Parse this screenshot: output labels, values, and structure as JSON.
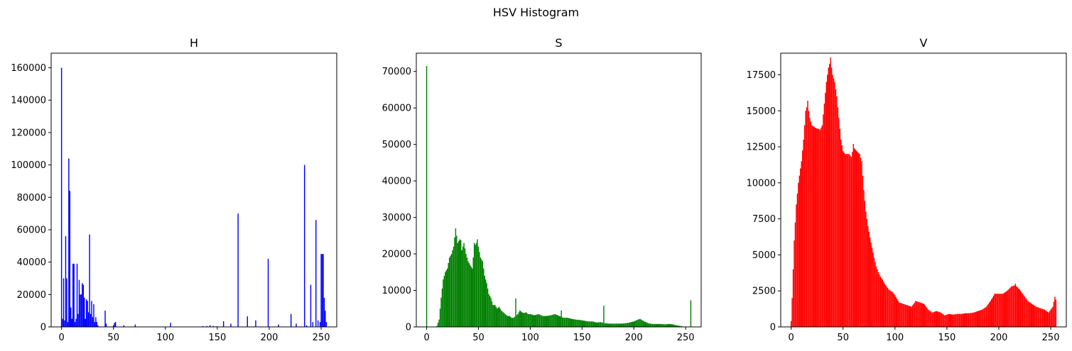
{
  "figure": {
    "title": "HSV Histogram"
  },
  "chart_data": [
    {
      "type": "bar",
      "title": "H",
      "color": "#0000ff",
      "xlim": [
        -10,
        265
      ],
      "ylim": [
        0,
        169000
      ],
      "xticks": [
        0,
        50,
        100,
        150,
        200,
        250
      ],
      "yticks": [
        0,
        20000,
        40000,
        60000,
        80000,
        100000,
        120000,
        140000,
        160000
      ],
      "x": [
        0,
        1,
        2,
        3,
        4,
        5,
        6,
        7,
        8,
        9,
        10,
        11,
        12,
        13,
        14,
        15,
        16,
        17,
        18,
        19,
        20,
        21,
        22,
        23,
        24,
        25,
        26,
        27,
        28,
        29,
        30,
        31,
        32,
        33,
        34,
        35,
        42,
        43,
        50,
        51,
        52,
        60,
        71,
        105,
        136,
        140,
        143,
        146,
        149,
        156,
        163,
        170,
        179,
        187,
        199,
        209,
        221,
        226,
        234,
        236,
        240,
        242,
        245,
        247,
        249,
        250,
        251,
        252,
        253,
        254,
        255
      ],
      "values": [
        160000,
        5000,
        30000,
        4000,
        56000,
        30000,
        3000,
        104000,
        84000,
        12000,
        5000,
        39000,
        39000,
        3000,
        5000,
        39000,
        8000,
        29000,
        20000,
        20000,
        27000,
        26000,
        18000,
        5000,
        17000,
        16000,
        9000,
        57000,
        8000,
        16000,
        6000,
        14000,
        3000,
        6000,
        3000,
        1000,
        10000,
        2000,
        1000,
        2500,
        3000,
        1000,
        1500,
        2500,
        500,
        500,
        1000,
        600,
        400,
        3500,
        2000,
        70000,
        6500,
        4000,
        42000,
        1500,
        8000,
        2000,
        100000,
        1000,
        26000,
        3000,
        66000,
        4000,
        3000,
        45000,
        45000,
        45000,
        18000,
        10000,
        3000
      ]
    },
    {
      "type": "bar",
      "title": "S",
      "color": "#008000",
      "xlim": [
        -10,
        265
      ],
      "ylim": [
        0,
        75000
      ],
      "xticks": [
        0,
        50,
        100,
        150,
        200,
        250
      ],
      "yticks": [
        0,
        10000,
        20000,
        30000,
        40000,
        50000,
        60000,
        70000
      ],
      "anchors": [
        [
          0,
          71500
        ],
        [
          1,
          0
        ],
        [
          9,
          0
        ],
        [
          10,
          300
        ],
        [
          12,
          2000
        ],
        [
          14,
          8000
        ],
        [
          16,
          13000
        ],
        [
          18,
          15000
        ],
        [
          20,
          16000
        ],
        [
          22,
          19000
        ],
        [
          24,
          20000
        ],
        [
          26,
          22000
        ],
        [
          28,
          27000
        ],
        [
          30,
          23000
        ],
        [
          32,
          24000
        ],
        [
          34,
          21000
        ],
        [
          36,
          23000
        ],
        [
          38,
          20000
        ],
        [
          40,
          18000
        ],
        [
          42,
          17000
        ],
        [
          44,
          16000
        ],
        [
          46,
          22000
        ],
        [
          48,
          23000
        ],
        [
          50,
          22000
        ],
        [
          52,
          19000
        ],
        [
          54,
          18000
        ],
        [
          56,
          14000
        ],
        [
          58,
          12000
        ],
        [
          60,
          9000
        ],
        [
          62,
          8000
        ],
        [
          64,
          6000
        ],
        [
          66,
          6000
        ],
        [
          68,
          5000
        ],
        [
          70,
          5500
        ],
        [
          72,
          4500
        ],
        [
          74,
          4000
        ],
        [
          76,
          3500
        ],
        [
          78,
          3000
        ],
        [
          80,
          3000
        ],
        [
          82,
          2500
        ],
        [
          84,
          2500
        ],
        [
          86,
          3000
        ],
        [
          88,
          3500
        ],
        [
          90,
          4500
        ],
        [
          92,
          4000
        ],
        [
          94,
          3800
        ],
        [
          96,
          4000
        ],
        [
          98,
          3500
        ],
        [
          100,
          3500
        ],
        [
          104,
          3200
        ],
        [
          108,
          3500
        ],
        [
          112,
          3000
        ],
        [
          116,
          3000
        ],
        [
          120,
          3200
        ],
        [
          124,
          3500
        ],
        [
          128,
          3000
        ],
        [
          132,
          2500
        ],
        [
          136,
          2500
        ],
        [
          140,
          2200
        ],
        [
          144,
          2000
        ],
        [
          148,
          1900
        ],
        [
          152,
          1700
        ],
        [
          156,
          1500
        ],
        [
          160,
          1500
        ],
        [
          164,
          1200
        ],
        [
          168,
          1300
        ],
        [
          172,
          1000
        ],
        [
          176,
          900
        ],
        [
          180,
          900
        ],
        [
          184,
          900
        ],
        [
          188,
          900
        ],
        [
          192,
          1000
        ],
        [
          196,
          1200
        ],
        [
          200,
          1500
        ],
        [
          204,
          2000
        ],
        [
          206,
          2200
        ],
        [
          210,
          1500
        ],
        [
          214,
          1000
        ],
        [
          218,
          800
        ],
        [
          222,
          800
        ],
        [
          226,
          800
        ],
        [
          230,
          700
        ],
        [
          234,
          800
        ],
        [
          238,
          700
        ],
        [
          240,
          500
        ],
        [
          244,
          300
        ],
        [
          248,
          100
        ],
        [
          250,
          0
        ],
        [
          254,
          0
        ],
        [
          255,
          7000
        ]
      ],
      "spikes": [
        [
          28,
          27000
        ],
        [
          49,
          24000
        ],
        [
          46,
          23000
        ],
        [
          33,
          23800
        ],
        [
          86,
          7800
        ],
        [
          130,
          4500
        ],
        [
          171,
          5800
        ],
        [
          255,
          7300
        ],
        [
          0,
          71500
        ]
      ]
    },
    {
      "type": "bar",
      "title": "V",
      "color": "#ff0000",
      "xlim": [
        -10,
        265
      ],
      "ylim": [
        0,
        19000
      ],
      "xticks": [
        0,
        50,
        100,
        150,
        200,
        250
      ],
      "yticks": [
        0,
        2500,
        5000,
        7500,
        10000,
        12500,
        15000,
        17500
      ],
      "anchors": [
        [
          0,
          400
        ],
        [
          1,
          2000
        ],
        [
          3,
          6000
        ],
        [
          5,
          8500
        ],
        [
          7,
          10000
        ],
        [
          10,
          11500
        ],
        [
          12,
          13000
        ],
        [
          14,
          15000
        ],
        [
          16,
          15500
        ],
        [
          18,
          14500
        ],
        [
          20,
          14000
        ],
        [
          24,
          13800
        ],
        [
          28,
          13700
        ],
        [
          30,
          14000
        ],
        [
          32,
          15500
        ],
        [
          34,
          17000
        ],
        [
          36,
          18000
        ],
        [
          38,
          18500
        ],
        [
          40,
          17500
        ],
        [
          42,
          17000
        ],
        [
          44,
          16000
        ],
        [
          46,
          14500
        ],
        [
          48,
          13000
        ],
        [
          50,
          12200
        ],
        [
          52,
          12000
        ],
        [
          56,
          12000
        ],
        [
          58,
          11800
        ],
        [
          60,
          12500
        ],
        [
          62,
          12300
        ],
        [
          66,
          12000
        ],
        [
          68,
          11500
        ],
        [
          70,
          9500
        ],
        [
          72,
          8000
        ],
        [
          74,
          7000
        ],
        [
          76,
          6200
        ],
        [
          78,
          5500
        ],
        [
          80,
          4800
        ],
        [
          82,
          4200
        ],
        [
          84,
          3800
        ],
        [
          86,
          3500
        ],
        [
          88,
          3300
        ],
        [
          90,
          3000
        ],
        [
          92,
          2800
        ],
        [
          94,
          2600
        ],
        [
          96,
          2500
        ],
        [
          98,
          2400
        ],
        [
          100,
          2200
        ],
        [
          104,
          1700
        ],
        [
          108,
          1600
        ],
        [
          112,
          1500
        ],
        [
          116,
          1400
        ],
        [
          120,
          1800
        ],
        [
          124,
          1700
        ],
        [
          128,
          1600
        ],
        [
          132,
          1200
        ],
        [
          136,
          1000
        ],
        [
          140,
          1100
        ],
        [
          144,
          1000
        ],
        [
          148,
          800
        ],
        [
          152,
          900
        ],
        [
          156,
          850
        ],
        [
          160,
          900
        ],
        [
          164,
          900
        ],
        [
          168,
          950
        ],
        [
          172,
          950
        ],
        [
          176,
          1000
        ],
        [
          180,
          1100
        ],
        [
          184,
          1200
        ],
        [
          188,
          1400
        ],
        [
          192,
          1800
        ],
        [
          196,
          2300
        ],
        [
          200,
          2300
        ],
        [
          204,
          2300
        ],
        [
          208,
          2500
        ],
        [
          212,
          2800
        ],
        [
          216,
          2900
        ],
        [
          220,
          2600
        ],
        [
          224,
          2200
        ],
        [
          228,
          1800
        ],
        [
          232,
          1600
        ],
        [
          236,
          1400
        ],
        [
          240,
          1300
        ],
        [
          244,
          1200
        ],
        [
          248,
          1000
        ],
        [
          252,
          1400
        ],
        [
          254,
          2100
        ],
        [
          255,
          1900
        ]
      ],
      "spikes": [
        [
          38,
          18700
        ],
        [
          16,
          15700
        ],
        [
          60,
          12700
        ],
        [
          216,
          3000
        ]
      ]
    }
  ]
}
